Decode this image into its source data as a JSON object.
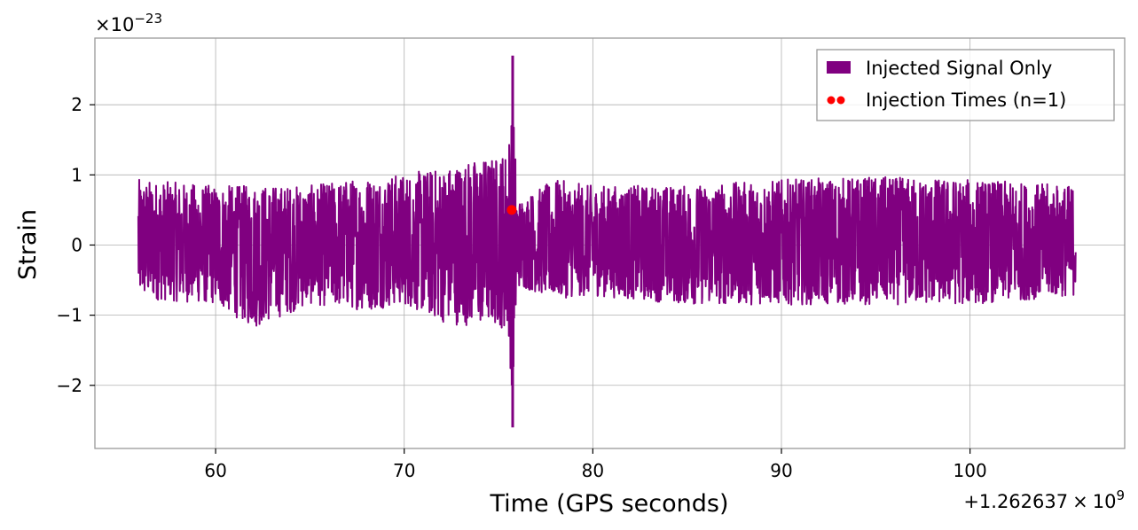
{
  "chart_data": {
    "type": "line",
    "xlabel": "Time (GPS seconds)",
    "ylabel": "Strain",
    "x_offset_label": "+1.262637",
    "x_offset_times": "×",
    "x_offset_base": "10",
    "x_offset_exp": "9",
    "y_scale_prefix": "×10",
    "y_scale_exp": "−23",
    "xlim": [
      53.6,
      108.2
    ],
    "ylim": [
      -2.9,
      2.95
    ],
    "x_ticks": [
      60,
      70,
      80,
      90,
      100
    ],
    "x_tick_labels": [
      "60",
      "70",
      "80",
      "90",
      "100"
    ],
    "y_ticks": [
      -2,
      -1,
      0,
      1,
      2
    ],
    "y_tick_labels": [
      "−2",
      "−1",
      "0",
      "1",
      "2"
    ],
    "grid": true,
    "legend_position": "top-right",
    "series": [
      {
        "name": "Injected Signal Only",
        "kind": "line",
        "color": "#800080",
        "x_range": [
          55.9,
          105.6
        ],
        "envelope_x": [
          56,
          60,
          62,
          65,
          68,
          70,
          72,
          73,
          74,
          75,
          75.5,
          75.75,
          76,
          78,
          80,
          85,
          90,
          95,
          100,
          105.6
        ],
        "envelope_upper": [
          1.1,
          1.0,
          1.0,
          1.0,
          1.15,
          1.2,
          1.3,
          1.4,
          1.45,
          1.5,
          1.65,
          2.7,
          0.75,
          1.1,
          1.0,
          1.0,
          1.1,
          1.15,
          1.1,
          1.0
        ],
        "envelope_lower": [
          -0.9,
          -1.0,
          -1.4,
          -1.0,
          -1.1,
          -1.0,
          -1.3,
          -1.35,
          -1.35,
          -1.35,
          -1.5,
          -2.6,
          -0.7,
          -0.9,
          -0.85,
          -1.0,
          -1.0,
          -1.0,
          -1.0,
          -0.85
        ],
        "peak": {
          "x": 75.75,
          "y_max": 2.7,
          "y_min": -2.6
        }
      },
      {
        "name": "Injection Times (n=1)",
        "kind": "scatter",
        "color": "#ff0000",
        "points": [
          {
            "x": 75.7,
            "y": 0.5
          }
        ]
      }
    ]
  }
}
